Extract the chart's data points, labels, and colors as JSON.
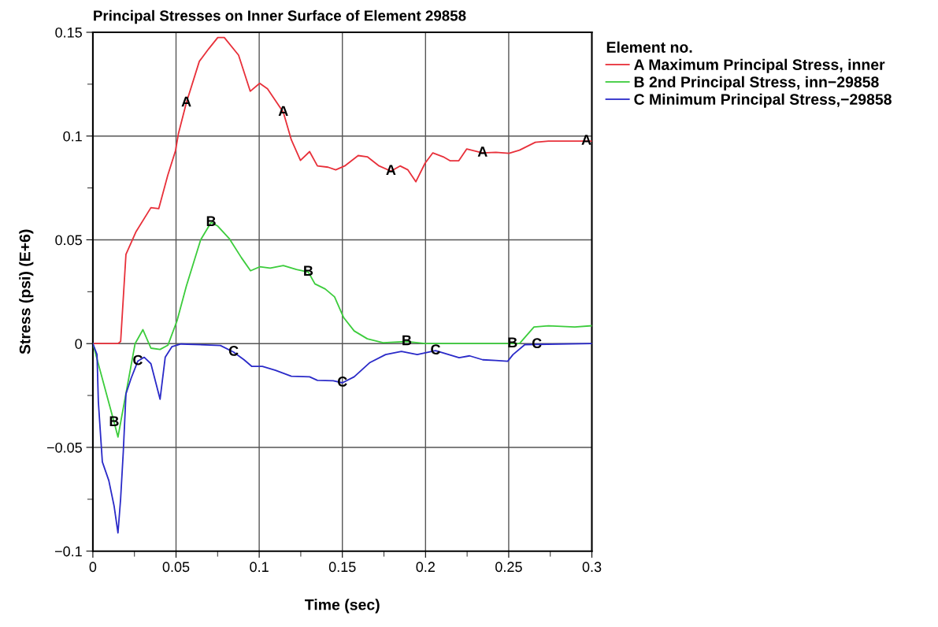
{
  "chart_data": {
    "type": "line",
    "title": "Principal Stresses on Inner Surface of Element 29858",
    "xlabel": "Time (sec)",
    "ylabel": "Stress (psi) (E+6)",
    "legend_title": "Element no.",
    "legend": "right",
    "grid": true,
    "marker": "none",
    "line_style": "solid",
    "xlim": [
      0,
      0.3
    ],
    "ylim": [
      -0.1,
      0.15
    ],
    "xticks": [
      0,
      0.05,
      0.1,
      0.15,
      0.2,
      0.25,
      0.3,
      {
        "value": 0.025,
        "label": null
      },
      {
        "value": 0.075,
        "label": null
      },
      {
        "value": 0.125,
        "label": null
      },
      {
        "value": 0.175,
        "label": null
      },
      {
        "value": 0.225,
        "label": null
      },
      {
        "value": 0.275,
        "label": null
      }
    ],
    "yticks": [
      {
        "value": -0.1,
        "label": "−0.1"
      },
      {
        "value": -0.05,
        "label": "−0.05"
      },
      0,
      0.05,
      0.1,
      0.15,
      {
        "value": -0.075,
        "label": null
      },
      {
        "value": -0.025,
        "label": null
      },
      {
        "value": 0.025,
        "label": null
      },
      {
        "value": 0.075,
        "label": null
      },
      {
        "value": 0.125,
        "label": null
      }
    ],
    "series": [
      {
        "name": "A Maximum Principal Stress, inner",
        "color": "#e8303a",
        "x": [
          0,
          0.0151,
          0.0167,
          0.0199,
          0.0238,
          0.026,
          0.0349,
          0.0396,
          0.045,
          0.0497,
          0.0514,
          0.0562,
          0.064,
          0.0696,
          0.0751,
          0.079,
          0.0876,
          0.0946,
          0.1003,
          0.105,
          0.1145,
          0.1193,
          0.1248,
          0.1303,
          0.135,
          0.1414,
          0.146,
          0.1514,
          0.1595,
          0.165,
          0.1721,
          0.1792,
          0.1847,
          0.1894,
          0.1942,
          0.1997,
          0.2044,
          0.2106,
          0.2147,
          0.22,
          0.2248,
          0.2343,
          0.2423,
          0.2502,
          0.2565,
          0.266,
          0.2739,
          0.3
        ],
        "values": [
          0,
          0,
          0.001,
          0.043,
          0.05,
          0.054,
          0.0655,
          0.065,
          0.081,
          0.093,
          0.101,
          0.116,
          0.136,
          0.142,
          0.1475,
          0.1475,
          0.139,
          0.1216,
          0.1254,
          0.1228,
          0.1115,
          0.0982,
          0.0883,
          0.0925,
          0.0856,
          0.085,
          0.0837,
          0.0856,
          0.0906,
          0.09,
          0.0856,
          0.0831,
          0.0856,
          0.0837,
          0.078,
          0.0869,
          0.0919,
          0.09,
          0.0881,
          0.0881,
          0.0938,
          0.0919,
          0.0922,
          0.0917,
          0.0932,
          0.097,
          0.0976,
          0.0976
        ]
      },
      {
        "name": "B 2nd Principal Stress, inn−29858",
        "color": "#3ccc3c",
        "x": [
          0,
          0.0128,
          0.0151,
          0.0254,
          0.0301,
          0.0349,
          0.0404,
          0.0451,
          0.0506,
          0.0562,
          0.0648,
          0.0711,
          0.0751,
          0.0822,
          0.0893,
          0.0948,
          0.1003,
          0.1066,
          0.1145,
          0.1224,
          0.1295,
          0.1335,
          0.1397,
          0.1453,
          0.1508,
          0.1571,
          0.165,
          0.1745,
          0.1887,
          0.1997,
          0.2565,
          0.2652,
          0.2739,
          0.2897,
          0.3
        ],
        "values": [
          0,
          -0.038,
          -0.045,
          0,
          0.0067,
          -0.0022,
          -0.0028,
          -0.0008,
          0.011,
          0.0277,
          0.05,
          0.0584,
          0.0566,
          0.0504,
          0.0414,
          0.0351,
          0.037,
          0.0364,
          0.0376,
          0.0357,
          0.0345,
          0.0288,
          0.0263,
          0.0225,
          0.0125,
          0.0061,
          0.0023,
          0.0004,
          0.001,
          0,
          0,
          0.008,
          0.0086,
          0.008,
          0.0086
        ]
      },
      {
        "name": "C Minimum Principal Stress,−29858",
        "color": "#2a2ac8",
        "x": [
          0,
          0.0025,
          0.0033,
          0.0057,
          0.0096,
          0.0128,
          0.0151,
          0.0167,
          0.0183,
          0.0199,
          0.023,
          0.027,
          0.0309,
          0.0349,
          0.0404,
          0.0435,
          0.0475,
          0.053,
          0.0767,
          0.0846,
          0.0909,
          0.0956,
          0.1019,
          0.1098,
          0.1193,
          0.1303,
          0.135,
          0.1445,
          0.15,
          0.1571,
          0.1666,
          0.176,
          0.1855,
          0.195,
          0.206,
          0.2139,
          0.2202,
          0.2265,
          0.2344,
          0.2423,
          0.2494,
          0.2526,
          0.2597,
          0.3
        ],
        "values": [
          0,
          -0.0053,
          -0.028,
          -0.057,
          -0.066,
          -0.0784,
          -0.0912,
          -0.0747,
          -0.052,
          -0.0242,
          -0.0167,
          -0.0085,
          -0.0066,
          -0.0097,
          -0.0268,
          -0.0066,
          -0.0015,
          -0.0002,
          -0.0009,
          -0.0041,
          -0.0078,
          -0.011,
          -0.011,
          -0.0129,
          -0.0157,
          -0.016,
          -0.0177,
          -0.0179,
          -0.0189,
          -0.016,
          -0.0091,
          -0.0053,
          -0.0038,
          -0.0053,
          -0.0034,
          -0.0053,
          -0.0068,
          -0.0059,
          -0.0078,
          -0.0081,
          -0.0085,
          -0.0053,
          -0.0005,
          0
        ]
      }
    ],
    "annotations": [
      {
        "text": "A",
        "x": 0.0562,
        "y": 0.116
      },
      {
        "text": "A",
        "x": 0.1145,
        "y": 0.1115
      },
      {
        "text": "A",
        "x": 0.1792,
        "y": 0.0831
      },
      {
        "text": "A",
        "x": 0.2343,
        "y": 0.0919
      },
      {
        "text": "A",
        "x": 0.2967,
        "y": 0.0976
      },
      {
        "text": "B",
        "x": 0.0128,
        "y": -0.038
      },
      {
        "text": "B",
        "x": 0.0711,
        "y": 0.0584
      },
      {
        "text": "B",
        "x": 0.1295,
        "y": 0.0345
      },
      {
        "text": "B",
        "x": 0.1887,
        "y": 0.001
      },
      {
        "text": "B",
        "x": 0.2523,
        "y": 0
      },
      {
        "text": "C",
        "x": 0.027,
        "y": -0.0085
      },
      {
        "text": "C",
        "x": 0.0846,
        "y": -0.0041
      },
      {
        "text": "C",
        "x": 0.15,
        "y": -0.0189
      },
      {
        "text": "C",
        "x": 0.206,
        "y": -0.0034
      },
      {
        "text": "C",
        "x": 0.2669,
        "y": -0.0004
      }
    ]
  }
}
